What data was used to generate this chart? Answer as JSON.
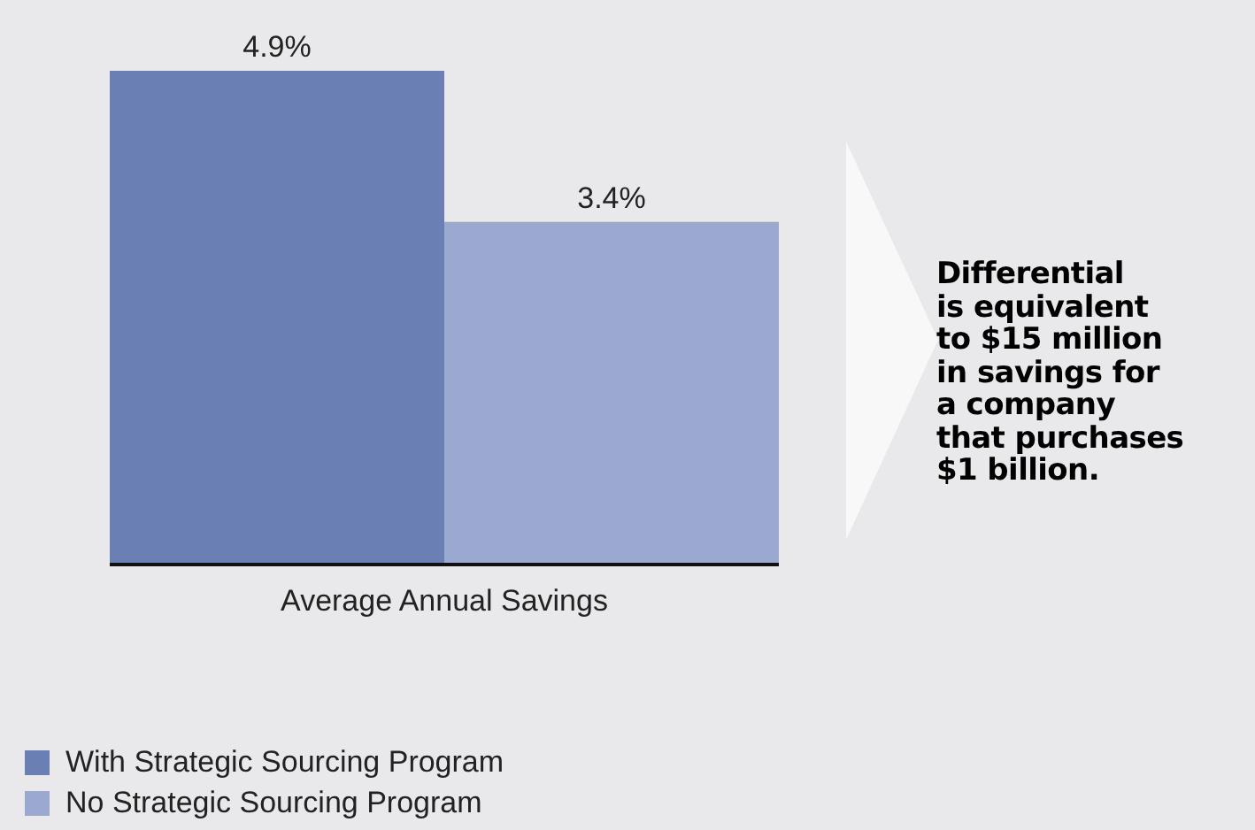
{
  "chart_data": {
    "type": "bar",
    "categories": [
      null
    ],
    "xlabel": "Average Annual Savings",
    "series": [
      {
        "name": "With Strategic Sourcing Program",
        "color": "#6a80b5",
        "values": [
          4.9
        ],
        "value_labels": [
          "4.9%"
        ]
      },
      {
        "name": "No Strategic Sourcing Program",
        "color": "#9ba9d0",
        "values": [
          3.4
        ],
        "value_labels": [
          "3.4%"
        ]
      }
    ],
    "tick_labels": false,
    "data_labels": true,
    "legend": "bottom left",
    "grid": false,
    "annotations": [
      "Differential\nis equivalent\nto $15 million\nin savings for\na company\nthat purchases\n$1 billion."
    ]
  }
}
